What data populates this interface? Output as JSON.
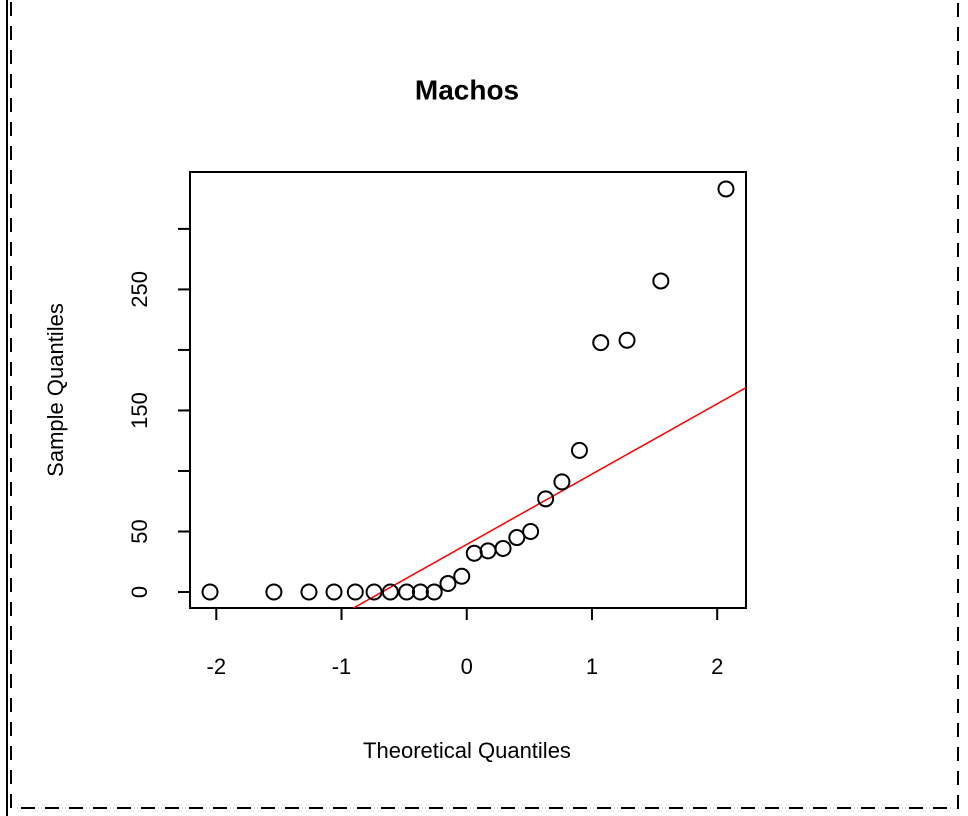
{
  "chart_data": {
    "type": "scatter",
    "title": "Machos",
    "xlabel": "Theoretical Quantiles",
    "ylabel": "Sample Quantiles",
    "x": [
      -2.05,
      -1.54,
      -1.26,
      -1.06,
      -0.89,
      -0.74,
      -0.61,
      -0.48,
      -0.37,
      -0.26,
      -0.15,
      -0.04,
      0.06,
      0.17,
      0.29,
      0.4,
      0.51,
      0.63,
      0.76,
      0.9,
      1.07,
      1.28,
      1.55,
      2.07
    ],
    "values": [
      0,
      0,
      0,
      0,
      0,
      0,
      0,
      0,
      0,
      0,
      7,
      13,
      32,
      34,
      36,
      45,
      50,
      77,
      91,
      117,
      206,
      208,
      257,
      333
    ],
    "color": "#000000",
    "reference_line": {
      "intercept": 39.3,
      "slope": 58.1,
      "color": "#ff0000"
    },
    "xlim": [
      -2.21,
      2.23
    ],
    "ylim": [
      -13.2,
      347
    ],
    "xticks": [
      -2,
      -1,
      0,
      1,
      2
    ],
    "yticks": [
      0,
      50,
      {
        "value": 100,
        "label": null
      },
      150,
      {
        "value": 200,
        "label": null
      },
      250,
      {
        "value": 300,
        "label": null
      }
    ]
  }
}
